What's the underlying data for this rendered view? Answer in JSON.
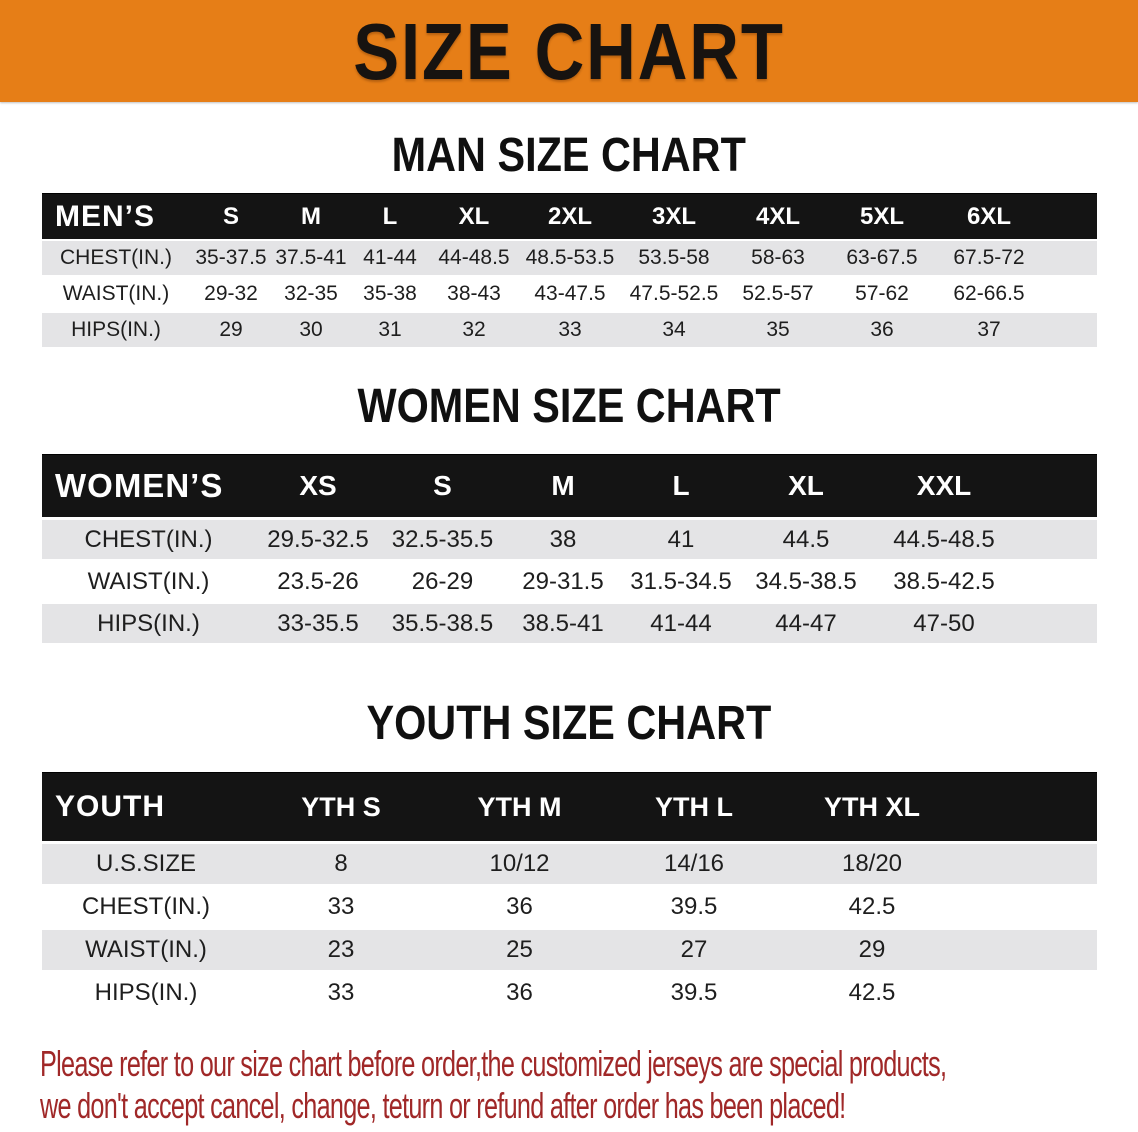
{
  "banner": {
    "title": "SIZE CHART"
  },
  "colors": {
    "banner_bg": "#e67e17",
    "header_band": "#141414",
    "row_stripe": "#e4e4e6",
    "disclaimer_text": "#a02828"
  },
  "sections": [
    {
      "heading": "MAN SIZE CHART",
      "corner": "MEN’S",
      "columns": [
        "S",
        "M",
        "L",
        "XL",
        "2XL",
        "3XL",
        "4XL",
        "5XL",
        "6XL"
      ],
      "rows": [
        {
          "label": "CHEST(IN.)",
          "values": [
            "35-37.5",
            "37.5-41",
            "41-44",
            "44-48.5",
            "48.5-53.5",
            "53.5-58",
            "58-63",
            "63-67.5",
            "67.5-72"
          ]
        },
        {
          "label": "WAIST(IN.)",
          "values": [
            "29-32",
            "32-35",
            "35-38",
            "38-43",
            "43-47.5",
            "47.5-52.5",
            "52.5-57",
            "57-62",
            "62-66.5"
          ]
        },
        {
          "label": "HIPS(IN.)",
          "values": [
            "29",
            "30",
            "31",
            "32",
            "33",
            "34",
            "35",
            "36",
            "37"
          ]
        }
      ]
    },
    {
      "heading": "WOMEN SIZE CHART",
      "corner": "WOMEN’S",
      "columns": [
        "XS",
        "S",
        "M",
        "L",
        "XL",
        "XXL"
      ],
      "rows": [
        {
          "label": "CHEST(IN.)",
          "values": [
            "29.5-32.5",
            "32.5-35.5",
            "38",
            "41",
            "44.5",
            "44.5-48.5"
          ]
        },
        {
          "label": "WAIST(IN.)",
          "values": [
            "23.5-26",
            "26-29",
            "29-31.5",
            "31.5-34.5",
            "34.5-38.5",
            "38.5-42.5"
          ]
        },
        {
          "label": "HIPS(IN.)",
          "values": [
            "33-35.5",
            "35.5-38.5",
            "38.5-41",
            "41-44",
            "44-47",
            "47-50"
          ]
        }
      ]
    },
    {
      "heading": "YOUTH SIZE CHART",
      "corner": "YOUTH",
      "columns": [
        "YTH S",
        "YTH M",
        "YTH L",
        "YTH XL"
      ],
      "rows": [
        {
          "label": "U.S.SIZE",
          "values": [
            "8",
            "10/12",
            "14/16",
            "18/20"
          ]
        },
        {
          "label": "CHEST(IN.)",
          "values": [
            "33",
            "36",
            "39.5",
            "42.5"
          ]
        },
        {
          "label": "WAIST(IN.)",
          "values": [
            "23",
            "25",
            "27",
            "29"
          ]
        },
        {
          "label": "HIPS(IN.)",
          "values": [
            "33",
            "36",
            "39.5",
            "42.5"
          ]
        }
      ]
    }
  ],
  "disclaimer": {
    "line1": "Please refer to our size chart before order,the customized jerseys are special products,",
    "line2": "we don't accept cancel, change, teturn or refund after order has been placed!"
  }
}
